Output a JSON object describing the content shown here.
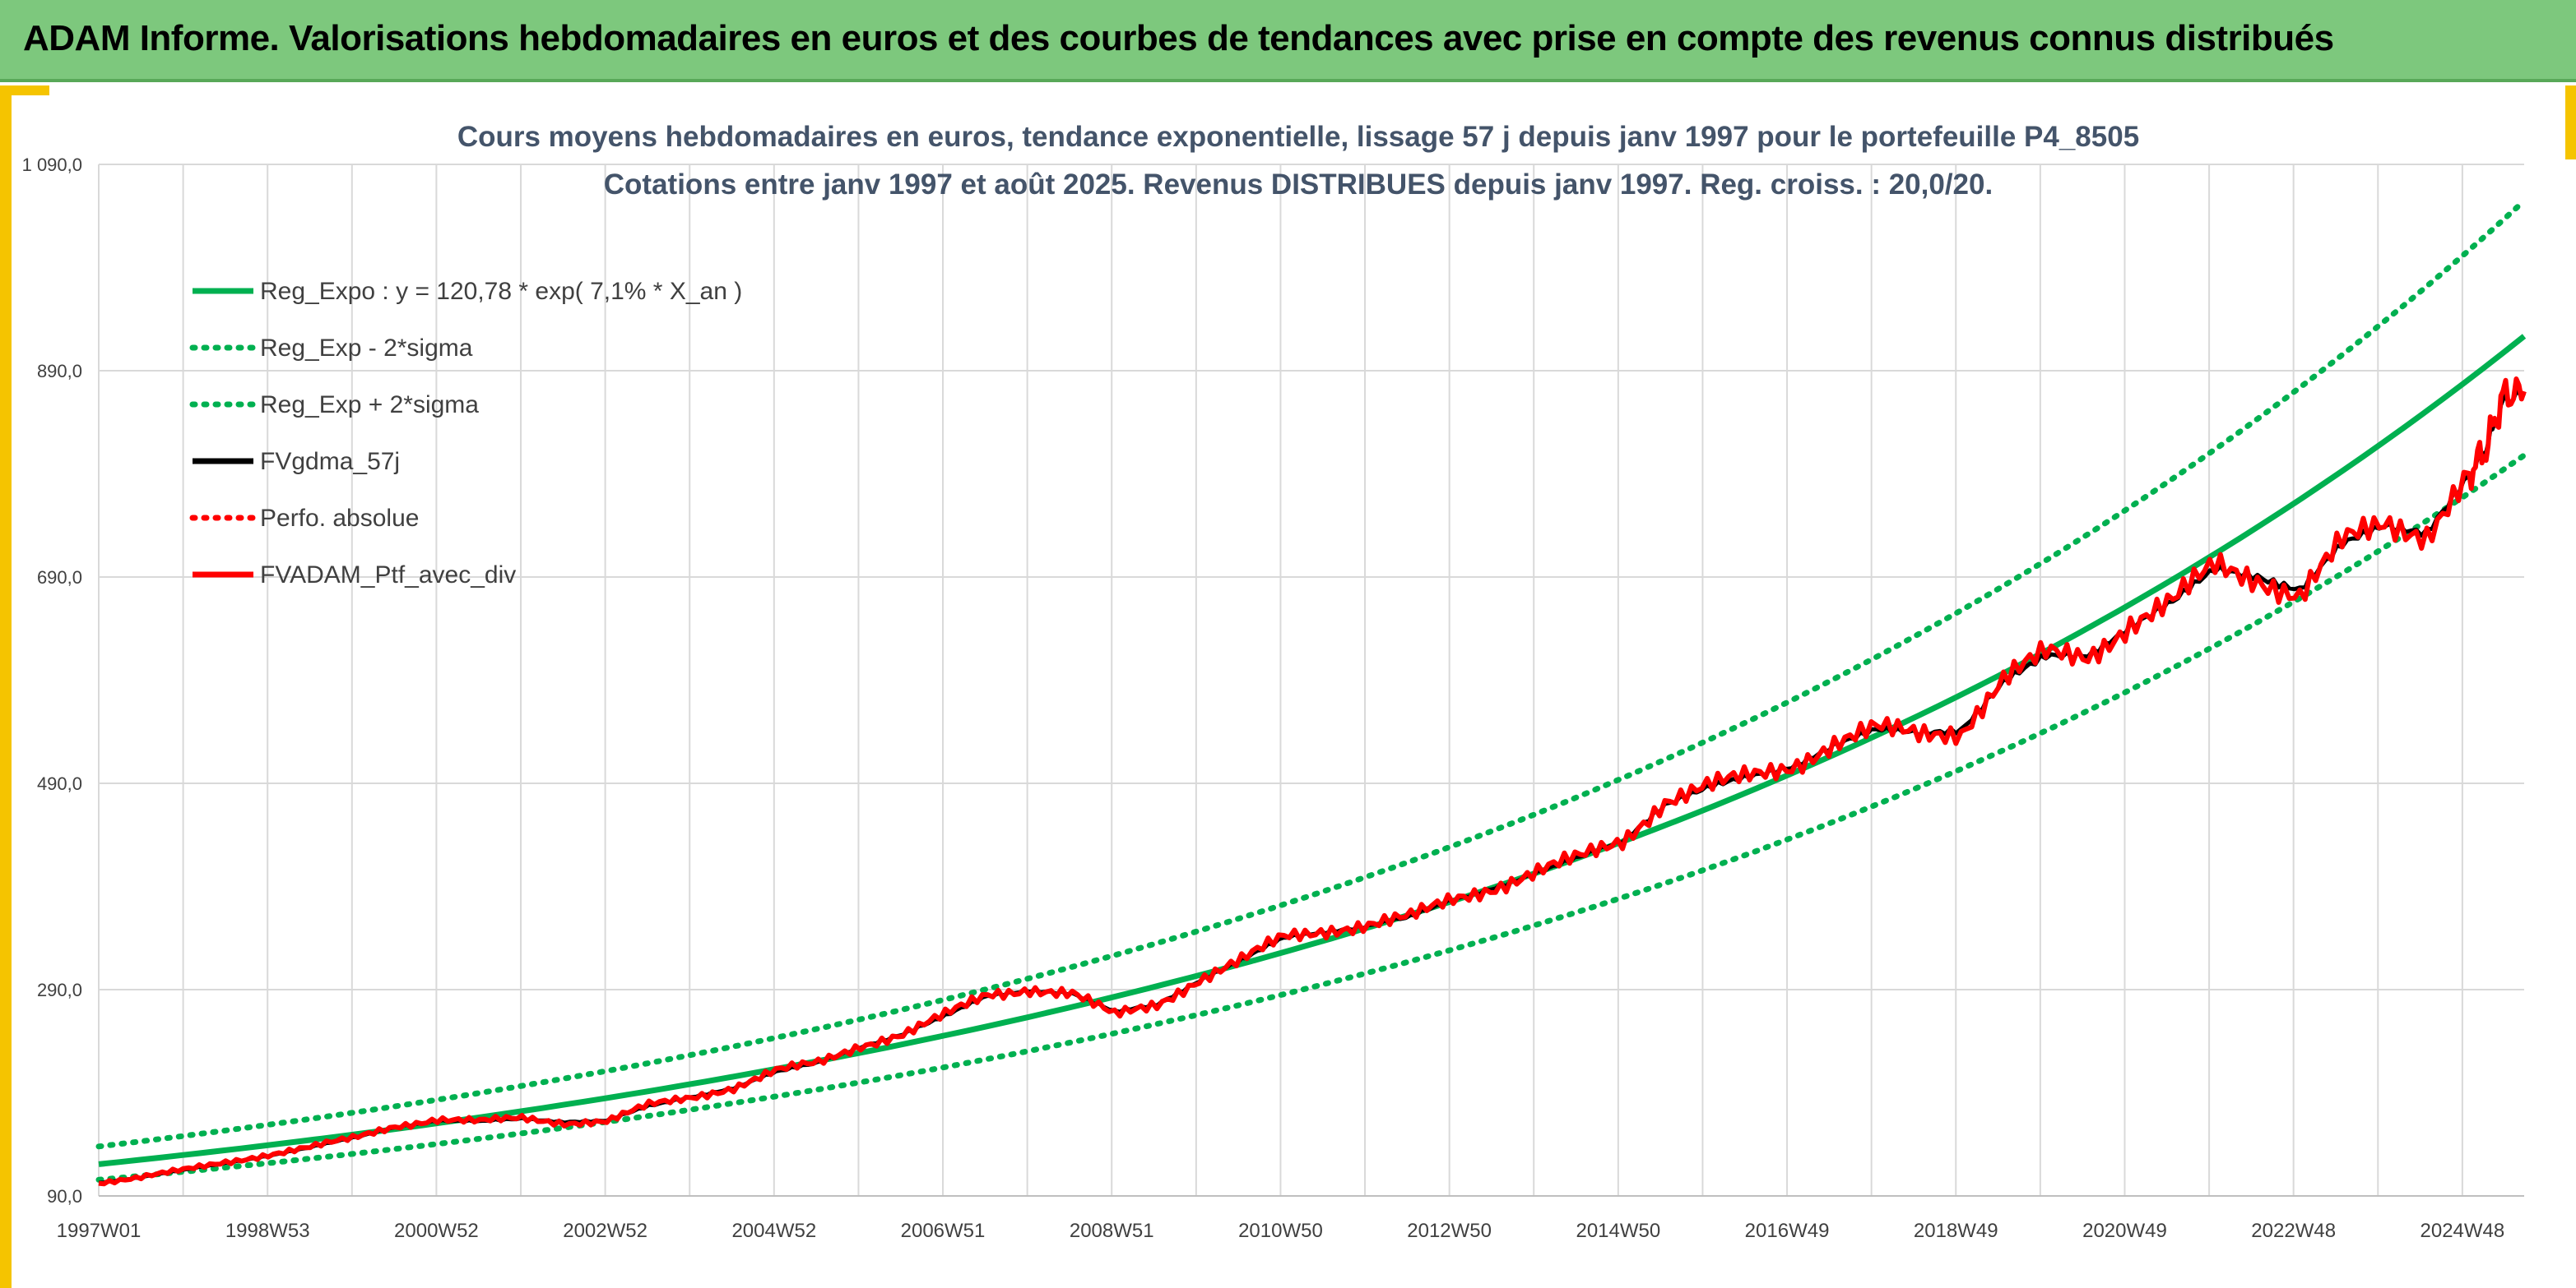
{
  "banner": {
    "title": "ADAM Informe. Valorisations hebdomadaires en euros et des courbes de tendances avec prise en compte des revenus connus distribués"
  },
  "colors": {
    "banner_bg": "#7dc87d",
    "accent_yellow": "#f5c400",
    "trend_green": "#00b050",
    "series_red": "#ff0000",
    "series_black": "#000000",
    "grid": "#d9d9d9"
  },
  "chart_data": {
    "type": "line",
    "title": "Cours moyens hebdomadaires en euros, tendance exponentielle, lissage 57 j depuis janv 1997 pour le portefeuille P4_8505",
    "subtitle": "Cotations entre janv 1997 et août 2025. Revenus DISTRIBUES depuis janv 1997. Reg. croiss. : 20,0/20.",
    "ylim": [
      90,
      1090
    ],
    "y_ticks": [
      "90,0",
      "290,0",
      "490,0",
      "690,0",
      "890,0",
      "1 090,0"
    ],
    "x_ticks": [
      "1997W01",
      "1998W53",
      "2000W52",
      "2002W52",
      "2004W52",
      "2006W51",
      "2008W51",
      "2010W50",
      "2012W50",
      "2014W50",
      "2016W49",
      "2018W49",
      "2020W49",
      "2022W48",
      "2024W48"
    ],
    "x_range": [
      "1997W01",
      "2025W35"
    ],
    "grid": true,
    "legend_position": "top-left",
    "legend": [
      {
        "name": "Reg_Expo : y = 120,78 * exp( 7,1% *  X_an )",
        "color": "#00b050",
        "style": "solid"
      },
      {
        "name": "Reg_Exp - 2*sigma",
        "color": "#00b050",
        "style": "dotted"
      },
      {
        "name": "Reg_Exp + 2*sigma",
        "color": "#00b050",
        "style": "dotted"
      },
      {
        "name": "FVgdma_57j",
        "color": "#000000",
        "style": "solid"
      },
      {
        "name": "Perfo. absolue",
        "color": "#ff0000",
        "style": "dotted"
      },
      {
        "name": "FVADAM_Ptf_avec_div",
        "color": "#ff0000",
        "style": "solid"
      }
    ],
    "trend": {
      "a": 120.78,
      "rate": 0.071
    },
    "band_factors": {
      "lower": 0.875,
      "upper": 1.142
    },
    "x_years": [
      1997.0,
      1997.5,
      1998.0,
      1998.5,
      1999.0,
      1999.5,
      2000.0,
      2000.5,
      2001.0,
      2001.5,
      2002.0,
      2002.5,
      2003.0,
      2003.5,
      2004.0,
      2004.5,
      2005.0,
      2005.5,
      2006.0,
      2006.5,
      2007.0,
      2007.5,
      2008.0,
      2008.5,
      2009.0,
      2009.5,
      2010.0,
      2010.5,
      2011.0,
      2011.5,
      2012.0,
      2012.5,
      2013.0,
      2013.5,
      2014.0,
      2014.5,
      2015.0,
      2015.5,
      2016.0,
      2016.5,
      2017.0,
      2017.5,
      2018.0,
      2018.5,
      2019.0,
      2019.5,
      2020.0,
      2020.5,
      2021.0,
      2021.5,
      2022.0,
      2022.5,
      2023.0,
      2023.5,
      2024.0,
      2024.5,
      2025.0,
      2025.2,
      2025.4,
      2025.65
    ],
    "series": [
      {
        "name": "FVADAM_Ptf_avec_div",
        "values": [
          103,
          108,
          115,
          123,
          130,
          137,
          146,
          158,
          164,
          162,
          166,
          161,
          162,
          178,
          186,
          195,
          211,
          219,
          236,
          247,
          265,
          285,
          291,
          286,
          265,
          276,
          300,
          318,
          341,
          348,
          353,
          360,
          378,
          390,
          404,
          418,
          435,
          473,
          486,
          497,
          508,
          528,
          542,
          539,
          541,
          590,
          615,
          614,
          645,
          665,
          701,
          690,
          672,
          722,
          742,
          733,
          790,
          815,
          865,
          870
        ]
      },
      {
        "name": "FVgdma_57j",
        "values": [
          103,
          108,
          115,
          122,
          129,
          137,
          146,
          157,
          163,
          162,
          165,
          162,
          163,
          177,
          186,
          195,
          210,
          219,
          235,
          247,
          264,
          284,
          290,
          286,
          268,
          276,
          299,
          318,
          340,
          347,
          352,
          360,
          377,
          390,
          403,
          418,
          435,
          470,
          485,
          496,
          507,
          527,
          541,
          539,
          543,
          588,
          612,
          615,
          643,
          665,
          697,
          692,
          678,
          720,
          740,
          735,
          788,
          815,
          860,
          868
        ]
      }
    ]
  }
}
